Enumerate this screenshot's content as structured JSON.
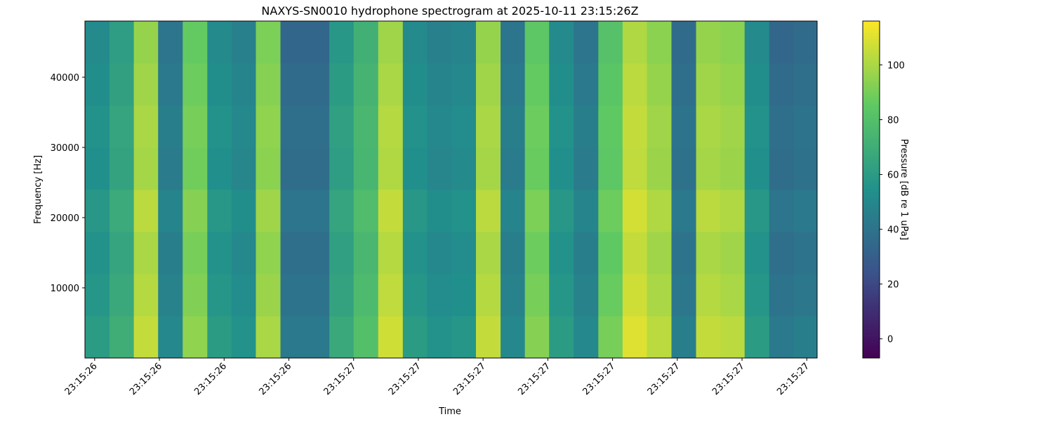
{
  "chart_data": {
    "type": "heatmap",
    "title": "NAXYS-SN0010 hydrophone spectrogram at 2025-10-11 23:15:26Z",
    "xlabel": "Time",
    "ylabel": "Frequency [Hz]",
    "colorbar_label": "Pressure [dB re 1 uPa]",
    "colormap": "viridis",
    "xlim": [
      26.585,
      27.716
    ],
    "xticks": [
      {
        "value": 26.6,
        "label": "23:15:26"
      },
      {
        "value": 26.7,
        "label": "23:15:26"
      },
      {
        "value": 26.8,
        "label": "23:15:26"
      },
      {
        "value": 26.9,
        "label": "23:15:26"
      },
      {
        "value": 27.0,
        "label": "23:15:27"
      },
      {
        "value": 27.1,
        "label": "23:15:27"
      },
      {
        "value": 27.2,
        "label": "23:15:27"
      },
      {
        "value": 27.3,
        "label": "23:15:27"
      },
      {
        "value": 27.4,
        "label": "23:15:27"
      },
      {
        "value": 27.5,
        "label": "23:15:27"
      },
      {
        "value": 27.6,
        "label": "23:15:27"
      },
      {
        "value": 27.7,
        "label": "23:15:27"
      }
    ],
    "ylim": [
      0,
      48000
    ],
    "yticks": [
      10000,
      20000,
      30000,
      40000
    ],
    "clim": [
      -7,
      116
    ],
    "cticks": [
      0,
      20,
      40,
      60,
      80,
      100
    ],
    "x": [
      26.604,
      26.642,
      26.679,
      26.717,
      26.755,
      26.793,
      26.83,
      26.868,
      26.906,
      26.944,
      26.981,
      27.019,
      27.057,
      27.095,
      27.132,
      27.17,
      27.208,
      27.246,
      27.283,
      27.321,
      27.359,
      27.397,
      27.434,
      27.472,
      27.51,
      27.548,
      27.585,
      27.623,
      27.661,
      27.699
    ],
    "y": [
      3000,
      9000,
      15000,
      21000,
      27000,
      33000,
      39000,
      45000
    ],
    "z": [
      [
        60,
        70,
        105,
        50,
        95,
        60,
        55,
        100,
        43,
        43,
        67,
        80,
        107,
        60,
        55,
        57,
        105,
        50,
        93,
        60,
        50,
        90,
        110,
        103,
        45,
        105,
        103,
        60,
        43,
        45
      ],
      [
        57,
        67,
        102,
        47,
        92,
        57,
        52,
        97,
        40,
        40,
        64,
        77,
        104,
        57,
        52,
        54,
        102,
        47,
        90,
        57,
        47,
        87,
        107,
        100,
        42,
        102,
        100,
        57,
        40,
        42
      ],
      [
        55,
        65,
        100,
        45,
        90,
        55,
        50,
        95,
        38,
        38,
        62,
        75,
        102,
        55,
        50,
        52,
        100,
        45,
        88,
        55,
        45,
        85,
        105,
        98,
        40,
        100,
        98,
        55,
        38,
        40
      ],
      [
        58,
        68,
        103,
        48,
        93,
        58,
        53,
        98,
        41,
        41,
        65,
        78,
        105,
        58,
        53,
        55,
        103,
        48,
        91,
        58,
        48,
        88,
        108,
        101,
        43,
        103,
        101,
        58,
        41,
        43
      ],
      [
        54,
        64,
        99,
        44,
        89,
        54,
        49,
        94,
        37,
        37,
        61,
        74,
        101,
        54,
        49,
        51,
        99,
        44,
        87,
        54,
        44,
        84,
        104,
        97,
        39,
        99,
        97,
        54,
        37,
        39
      ],
      [
        55,
        65,
        100,
        45,
        90,
        55,
        50,
        95,
        38,
        38,
        62,
        75,
        102,
        55,
        50,
        52,
        100,
        45,
        88,
        55,
        45,
        85,
        105,
        98,
        40,
        100,
        98,
        55,
        38,
        40
      ],
      [
        53,
        63,
        98,
        43,
        88,
        53,
        48,
        93,
        36,
        36,
        60,
        73,
        100,
        53,
        48,
        50,
        98,
        43,
        86,
        53,
        43,
        83,
        103,
        96,
        38,
        98,
        96,
        53,
        36,
        38
      ],
      [
        51,
        61,
        96,
        41,
        86,
        51,
        46,
        91,
        34,
        34,
        58,
        71,
        98,
        51,
        46,
        48,
        96,
        41,
        84,
        51,
        41,
        81,
        101,
        94,
        36,
        96,
        94,
        51,
        34,
        36
      ]
    ]
  }
}
